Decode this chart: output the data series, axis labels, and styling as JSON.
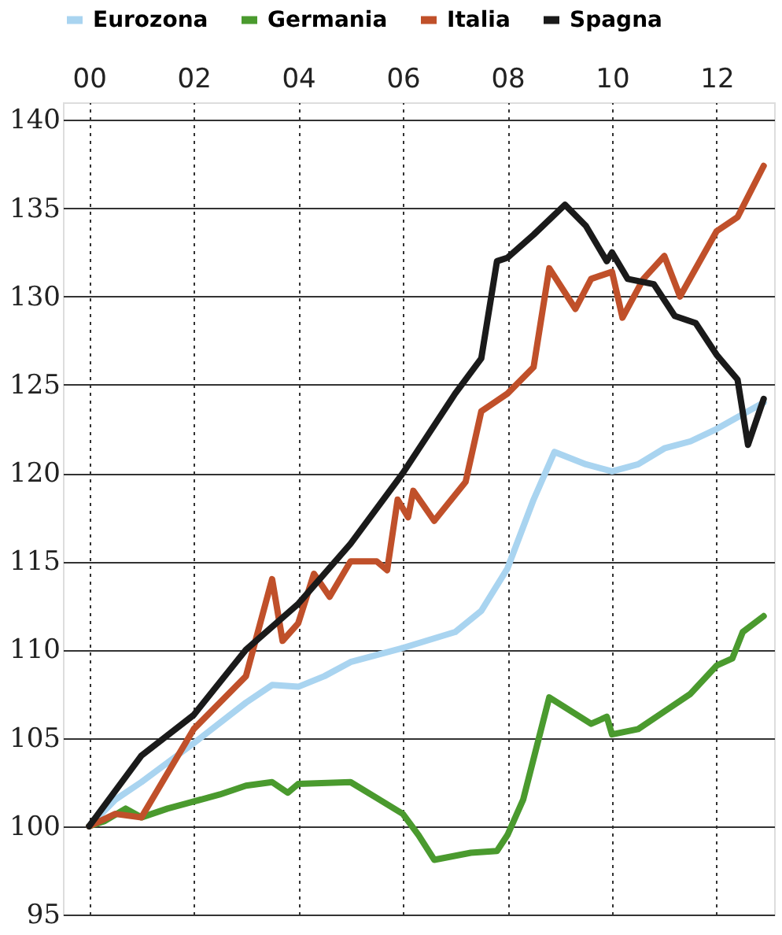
{
  "chart_data": {
    "type": "line",
    "xlim": [
      1999.5,
      2013.1
    ],
    "xticks": [
      {
        "value": 2000,
        "label": "00"
      },
      {
        "value": 2002,
        "label": "02"
      },
      {
        "value": 2004,
        "label": "04"
      },
      {
        "value": 2006,
        "label": "06"
      },
      {
        "value": 2008,
        "label": "08"
      },
      {
        "value": 2010,
        "label": "10"
      },
      {
        "value": 2012,
        "label": "12"
      }
    ],
    "ylim": [
      95,
      141
    ],
    "yticks": [
      95,
      100,
      105,
      110,
      115,
      120,
      125,
      130,
      135,
      140
    ],
    "grid": true,
    "legend": "top",
    "line_style": "solid",
    "series": [
      {
        "name": "Eurozona",
        "color": "#a9d4f0",
        "x": [
          2000,
          2000.5,
          2001,
          2002,
          2003,
          2003.5,
          2004,
          2004.5,
          2005,
          2006,
          2007,
          2007.5,
          2008,
          2008.5,
          2008.9,
          2009.5,
          2010,
          2010.5,
          2011,
          2011.5,
          2012,
          2012.9
        ],
        "values": [
          100,
          101.5,
          102.5,
          104.7,
          107,
          108,
          107.9,
          108.5,
          109.3,
          110.1,
          111,
          112.2,
          114.6,
          118.5,
          121.2,
          120.5,
          120.1,
          120.5,
          121.4,
          121.8,
          122.5,
          124
        ]
      },
      {
        "name": "Germania",
        "color": "#4a9a2e",
        "x": [
          2000,
          2000.3,
          2000.7,
          2001,
          2001.5,
          2002,
          2002.5,
          2003,
          2003.5,
          2003.8,
          2004,
          2005,
          2005.5,
          2006,
          2006.3,
          2006.6,
          2007.3,
          2007.8,
          2008,
          2008.3,
          2008.8,
          2009.6,
          2009.9,
          2010,
          2010.5,
          2011,
          2011.5,
          2012,
          2012.3,
          2012.5,
          2012.9
        ],
        "values": [
          100,
          100.3,
          101,
          100.5,
          101,
          101.4,
          101.8,
          102.3,
          102.5,
          101.9,
          102.4,
          102.5,
          101.6,
          100.7,
          99.5,
          98.1,
          98.5,
          98.6,
          99.5,
          101.5,
          107.3,
          105.8,
          106.2,
          105.2,
          105.5,
          106.5,
          107.5,
          109.1,
          109.5,
          111,
          111.9
        ]
      },
      {
        "name": "Italia",
        "color": "#c0502a",
        "x": [
          2000,
          2000.5,
          2001,
          2001.5,
          2002,
          2002.5,
          2003,
          2003.5,
          2003.7,
          2004,
          2004.3,
          2004.6,
          2005,
          2005.5,
          2005.7,
          2005.9,
          2006.1,
          2006.2,
          2006.6,
          2007.2,
          2007.5,
          2008,
          2008.5,
          2008.8,
          2009.3,
          2009.6,
          2010,
          2010.2,
          2010.6,
          2011,
          2011.3,
          2012,
          2012.4,
          2012.9
        ],
        "values": [
          100,
          100.7,
          100.5,
          103,
          105.5,
          107,
          108.5,
          114,
          110.5,
          111.5,
          114.3,
          113,
          115,
          115,
          114.5,
          118.5,
          117.5,
          119,
          117.3,
          119.5,
          123.5,
          124.5,
          126,
          131.6,
          129.3,
          131,
          131.4,
          128.8,
          131,
          132.3,
          130,
          133.7,
          134.5,
          137.4
        ]
      },
      {
        "name": "Spagna",
        "color": "#1a1a1a",
        "x": [
          2000,
          2001,
          2002,
          2003,
          2004,
          2005,
          2006,
          2007,
          2007.5,
          2007.8,
          2008,
          2008.5,
          2009.1,
          2009.5,
          2009.9,
          2010,
          2010.3,
          2010.8,
          2011.2,
          2011.6,
          2012,
          2012.4,
          2012.6,
          2012.9
        ],
        "values": [
          100,
          104,
          106.3,
          110,
          112.6,
          116,
          120,
          124.5,
          126.5,
          132,
          132.2,
          133.5,
          135.2,
          134,
          132,
          132.5,
          131,
          130.7,
          128.9,
          128.5,
          126.7,
          125.3,
          121.6,
          124.2
        ]
      }
    ]
  }
}
